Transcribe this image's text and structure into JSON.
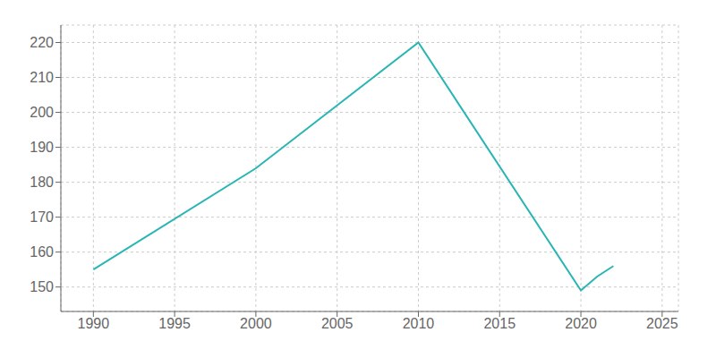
{
  "chart_data": {
    "type": "line",
    "x": [
      1990,
      2000,
      2010,
      2020,
      2021,
      2022
    ],
    "values": [
      155,
      184,
      220,
      149,
      153,
      156
    ],
    "color": "#2ab5b5",
    "xlim": [
      1988,
      2026
    ],
    "ylim": [
      143,
      225
    ],
    "xticks": [
      1990,
      1995,
      2000,
      2005,
      2010,
      2015,
      2020,
      2025
    ],
    "yticks": [
      150,
      160,
      170,
      180,
      190,
      200,
      210,
      220
    ],
    "grid": true
  }
}
